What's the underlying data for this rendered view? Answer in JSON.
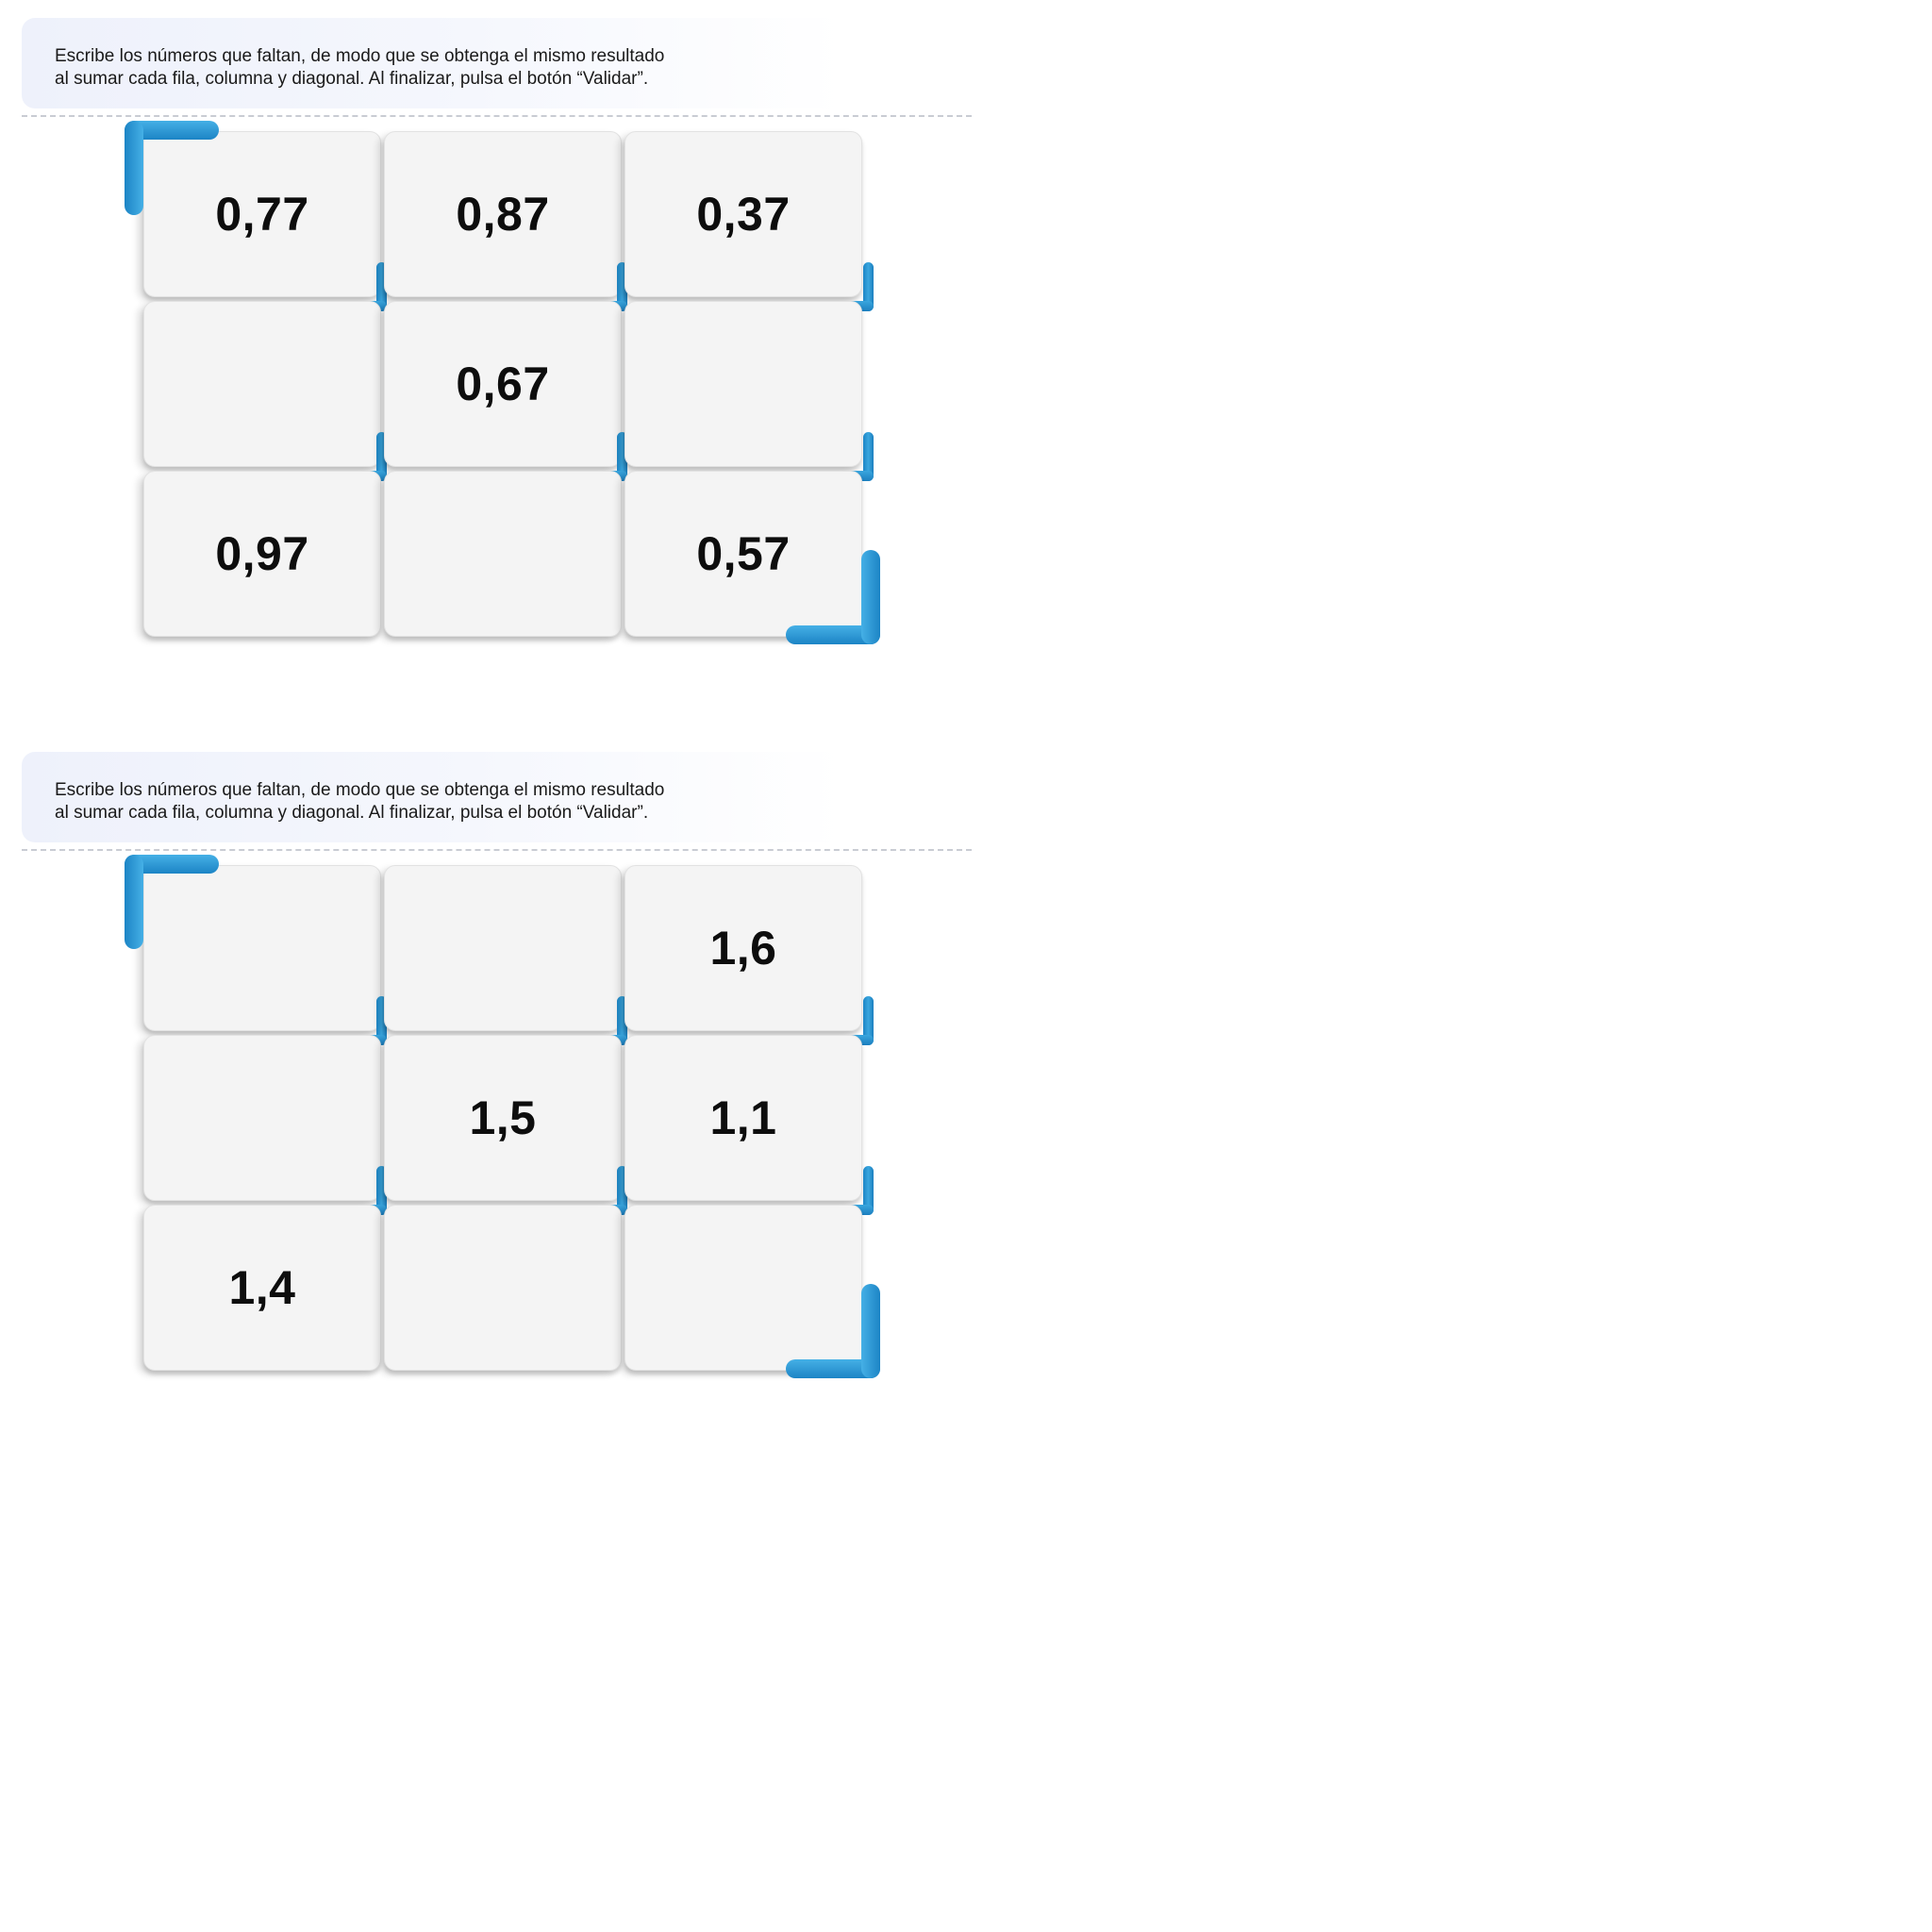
{
  "exercises": [
    {
      "instruction": {
        "line1": "Escribe los números que faltan, de modo que se obtenga el mismo resultado",
        "line2": "al sumar cada fila, columna y diagonal. Al finalizar, pulsa el botón “Validar”."
      },
      "grid": [
        [
          "0,77",
          "0,87",
          "0,37"
        ],
        [
          "",
          "0,67",
          ""
        ],
        [
          "0,97",
          "",
          "0,57"
        ]
      ]
    },
    {
      "instruction": {
        "line1": "Escribe los números que faltan, de modo que se obtenga el mismo resultado",
        "line2": "al sumar cada fila, columna y diagonal. Al finalizar, pulsa el botón “Validar”."
      },
      "grid": [
        [
          "",
          "",
          "1,6"
        ],
        [
          "",
          "1,5",
          "1,1"
        ],
        [
          "1,4",
          "",
          ""
        ]
      ]
    }
  ],
  "colors": {
    "accent": "#2a96d4",
    "cell_background": "#f4f4f4",
    "instruction_background": "#eef1fb"
  },
  "icons": {
    "corner_bracket": "corner-bracket-icon"
  }
}
